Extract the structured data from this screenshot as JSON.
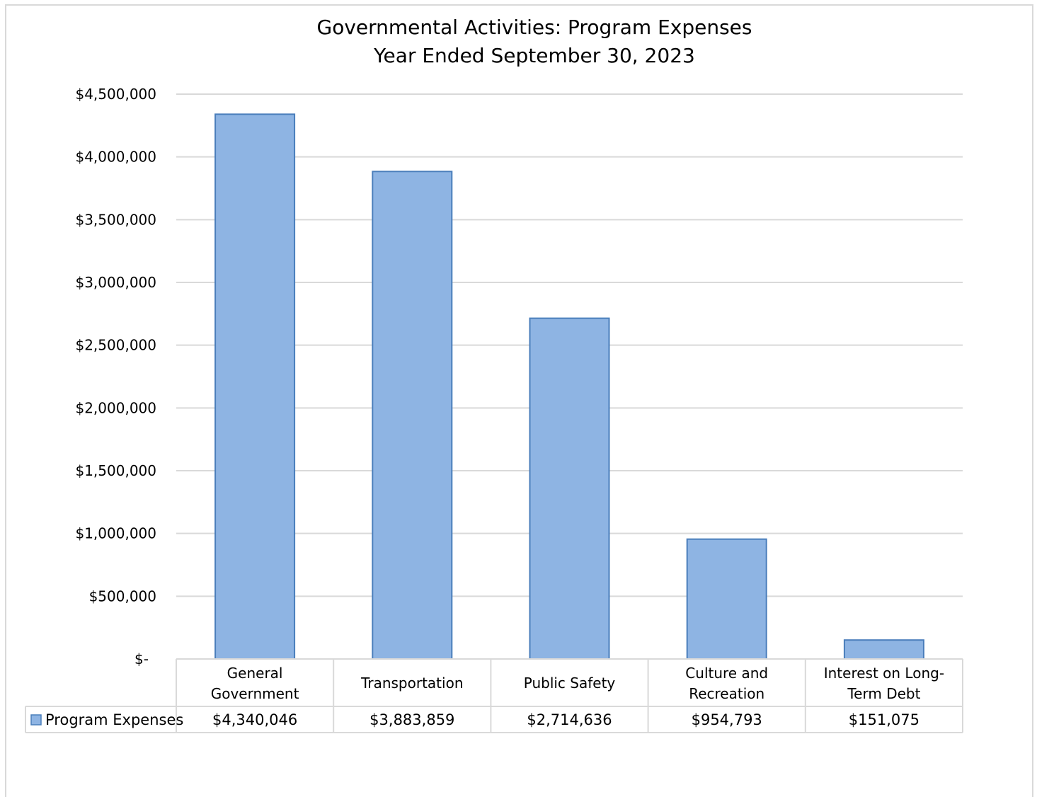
{
  "chart_data": {
    "type": "bar",
    "title": "Governmental Activities: Program Expenses",
    "subtitle": "Year Ended September 30, 2023",
    "categories": [
      [
        "General",
        "Government"
      ],
      [
        "Transportation"
      ],
      [
        "Public Safety"
      ],
      [
        "Culture and",
        "Recreation"
      ],
      [
        "Interest on Long-",
        "Term Debt"
      ]
    ],
    "series": [
      {
        "name": "Program Expenses",
        "values": [
          4340046,
          3883859,
          2714636,
          954793,
          151075
        ],
        "value_labels": [
          "$4,340,046",
          "$3,883,859",
          "$2,714,636",
          "$954,793",
          "$151,075"
        ]
      }
    ],
    "y_ticks": [
      {
        "value": 0,
        "label": "$-"
      },
      {
        "value": 500000,
        "label": "$500,000"
      },
      {
        "value": 1000000,
        "label": "$1,000,000"
      },
      {
        "value": 1500000,
        "label": "$1,500,000"
      },
      {
        "value": 2000000,
        "label": "$2,000,000"
      },
      {
        "value": 2500000,
        "label": "$2,500,000"
      },
      {
        "value": 3000000,
        "label": "$3,000,000"
      },
      {
        "value": 3500000,
        "label": "$3,500,000"
      },
      {
        "value": 4000000,
        "label": "$4,000,000"
      },
      {
        "value": 4500000,
        "label": "$4,500,000"
      }
    ],
    "ylim": [
      0,
      4500000
    ],
    "grid": true,
    "legend": "data-table",
    "colors": {
      "bar_fill": "#8eb4e3",
      "bar_stroke": "#4a7ebb",
      "grid": "#d9d9d9",
      "table_border": "#d9d9d9"
    }
  }
}
